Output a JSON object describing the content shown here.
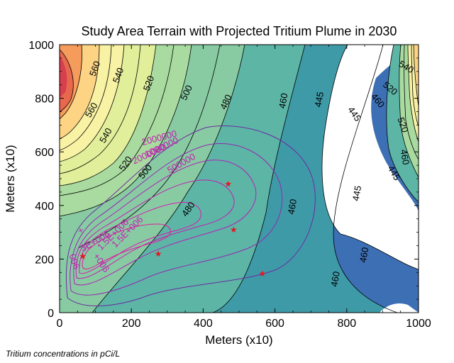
{
  "chart_data": {
    "type": "contour",
    "title": "Study Area Terrain with Projected Tritium Plume in 2030",
    "xlabel": "Meters (x10)",
    "ylabel": "Meters (x10)",
    "xlim": [
      0,
      1000
    ],
    "ylim": [
      0,
      1000
    ],
    "xticks": [
      0,
      200,
      400,
      600,
      800,
      1000
    ],
    "yticks": [
      0,
      200,
      400,
      600,
      800,
      1000
    ],
    "terrain_labels": [
      {
        "text": "560",
        "x": 100,
        "y": 910,
        "rot": -70
      },
      {
        "text": "540",
        "x": 165,
        "y": 885,
        "rot": -70
      },
      {
        "text": "520",
        "x": 250,
        "y": 855,
        "rot": -70
      },
      {
        "text": "560",
        "x": 90,
        "y": 755,
        "rot": -60
      },
      {
        "text": "540",
        "x": 130,
        "y": 660,
        "rot": -60
      },
      {
        "text": "520",
        "x": 185,
        "y": 555,
        "rot": -55
      },
      {
        "text": "500",
        "x": 355,
        "y": 820,
        "rot": -65
      },
      {
        "text": "480",
        "x": 465,
        "y": 785,
        "rot": -65
      },
      {
        "text": "460",
        "x": 625,
        "y": 790,
        "rot": -80
      },
      {
        "text": "445",
        "x": 725,
        "y": 795,
        "rot": -80
      },
      {
        "text": "500",
        "x": 240,
        "y": 525,
        "rot": -50
      },
      {
        "text": "480",
        "x": 360,
        "y": 385,
        "rot": -55
      },
      {
        "text": "460",
        "x": 650,
        "y": 395,
        "rot": -80
      },
      {
        "text": "445",
        "x": 830,
        "y": 445,
        "rot": -80
      },
      {
        "text": "460",
        "x": 770,
        "y": 125,
        "rot": -80
      },
      {
        "text": "460",
        "x": 850,
        "y": 215,
        "rot": -80
      },
      {
        "text": "445",
        "x": 820,
        "y": 740,
        "rot": 55
      },
      {
        "text": "460",
        "x": 885,
        "y": 790,
        "rot": 50
      },
      {
        "text": "520",
        "x": 920,
        "y": 835,
        "rot": 40
      },
      {
        "text": "540",
        "x": 965,
        "y": 915,
        "rot": 30
      },
      {
        "text": "520",
        "x": 955,
        "y": 700,
        "rot": 70
      },
      {
        "text": "460",
        "x": 960,
        "y": 580,
        "rot": 80
      },
      {
        "text": "445",
        "x": 930,
        "y": 520,
        "rot": 60
      }
    ],
    "plume_labels": [
      {
        "text": "2000000",
        "x": 278,
        "y": 650,
        "rot": -15
      },
      {
        "text": "1000000",
        "x": 285,
        "y": 615,
        "rot": -25
      },
      {
        "text": "2000000",
        "x": 250,
        "y": 590,
        "rot": -25
      },
      {
        "text": "500000",
        "x": 340,
        "y": 555,
        "rot": -30
      },
      {
        "text": "+",
        "x": 60,
        "y": 305,
        "rot": -30
      },
      {
        "text": "1.5E+006",
        "x": 150,
        "y": 290,
        "rot": -45
      },
      {
        "text": "3E+006",
        "x": 100,
        "y": 265,
        "rot": -30
      },
      {
        "text": "1.5E+006",
        "x": 190,
        "y": 300,
        "rot": -45
      },
      {
        "text": "006",
        "x": 40,
        "y": 190,
        "rot": 70
      },
      {
        "text": "+006",
        "x": 115,
        "y": 185,
        "rot": 55
      }
    ],
    "wells": [
      {
        "x": 470,
        "y": 480
      },
      {
        "x": 485,
        "y": 310
      },
      {
        "x": 565,
        "y": 145
      },
      {
        "x": 275,
        "y": 220
      },
      {
        "x": 65,
        "y": 210
      }
    ]
  },
  "note": "Tritium concentrations in pCi/L"
}
